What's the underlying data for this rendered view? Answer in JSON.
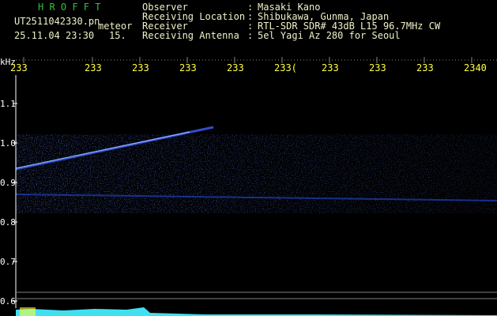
{
  "header": {
    "app": "H R O F F T",
    "file": "UT2511042330.pn",
    "mode": "meteor",
    "datetime": "25.11.04 23:30",
    "second": "15.",
    "info": [
      {
        "label": "Observer",
        "value": "Masaki Kano"
      },
      {
        "label": "Receiving Location",
        "value": "Shibukawa, Gunma, Japan"
      },
      {
        "label": "Receiver",
        "value": "RTL-SDR SDR# 43dB L15 96.7MHz CW"
      },
      {
        "label": "Receiving Antenna",
        "value": "5el Yagi Az 280 for Seoul"
      }
    ],
    "separator": ":"
  },
  "axis": {
    "unit": "kHz",
    "time_labels": [
      "233",
      "233",
      "233",
      "233",
      "233",
      "233(",
      "233",
      "233",
      "233",
      "2340"
    ],
    "freq_labels": [
      "1.1",
      "1.0",
      "0.9",
      "0.8",
      "0.7",
      "0.6"
    ]
  }
}
